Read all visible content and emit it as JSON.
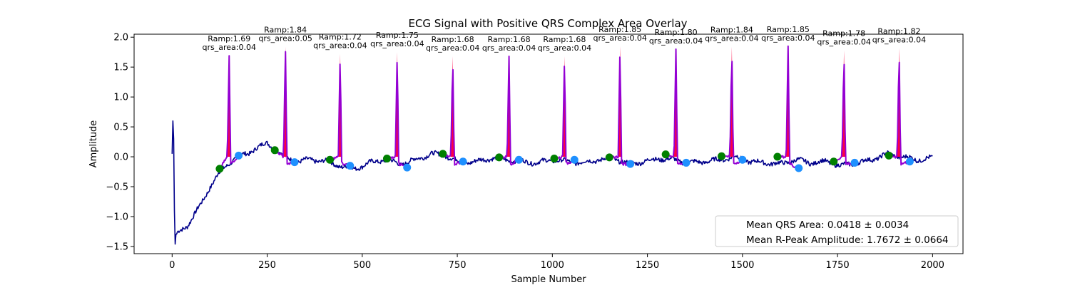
{
  "chart_data": {
    "type": "line",
    "title": "ECG Signal with Positive QRS Complex Area Overlay",
    "xlabel": "Sample Number",
    "ylabel": "Amplitude",
    "xlim": [
      -100,
      2080
    ],
    "ylim": [
      -1.62,
      2.05
    ],
    "xticks": [
      0,
      250,
      500,
      750,
      1000,
      1250,
      1500,
      1750,
      2000
    ],
    "yticks": [
      -1.5,
      -1.0,
      -0.5,
      0.0,
      0.5,
      1.0,
      1.5,
      2.0
    ],
    "xtick_labels": [
      "0",
      "250",
      "500",
      "750",
      "1000",
      "1250",
      "1500",
      "1750",
      "2000"
    ],
    "ytick_labels": [
      "−1.5",
      "−1.0",
      "−0.5",
      "0.0",
      "0.5",
      "1.0",
      "1.5",
      "2.0"
    ],
    "grid": false,
    "colors": {
      "signal": "#00008b",
      "qrs_segment": "#9400d3",
      "qrs_area": "#ff0040",
      "q_marker": "#008000",
      "s_marker": "#1e90ff"
    },
    "signal_keypoints": {
      "x": [
        0,
        2,
        4,
        6,
        8,
        10,
        20,
        40,
        60,
        80,
        100,
        120,
        140,
        160,
        180,
        200,
        220,
        250,
        275,
        300,
        330,
        360,
        400,
        440,
        480,
        520,
        560,
        600,
        640,
        680,
        720,
        760,
        800,
        840,
        880,
        920,
        960,
        1000,
        1040,
        1080,
        1120,
        1160,
        1200,
        1240,
        1280,
        1320,
        1360,
        1400,
        1440,
        1480,
        1520,
        1560,
        1600,
        1640,
        1680,
        1720,
        1760,
        1800,
        1840,
        1880,
        1920,
        1960,
        2000
      ],
      "y": [
        0.05,
        0.6,
        0.3,
        -0.9,
        -1.46,
        -1.3,
        -1.25,
        -1.15,
        -0.95,
        -0.75,
        -0.5,
        -0.3,
        -0.17,
        -0.05,
        0.02,
        0.05,
        0.15,
        0.22,
        0.12,
        -0.02,
        -0.08,
        -0.05,
        -0.07,
        -0.15,
        -0.2,
        -0.1,
        -0.05,
        -0.12,
        -0.05,
        0.05,
        0.02,
        -0.1,
        -0.08,
        -0.02,
        -0.05,
        -0.08,
        -0.1,
        -0.05,
        -0.08,
        -0.1,
        -0.05,
        -0.02,
        -0.12,
        -0.08,
        -0.03,
        -0.05,
        -0.1,
        -0.08,
        -0.05,
        0.0,
        -0.08,
        -0.1,
        -0.12,
        -0.05,
        -0.1,
        -0.08,
        -0.15,
        -0.1,
        -0.05,
        0.05,
        0.0,
        -0.05,
        -0.02
      ]
    },
    "beats": [
      {
        "q_x": 125,
        "q_y": -0.2,
        "r_x": 150,
        "r_y": 1.69,
        "s_x": 175,
        "s_y": 0.02,
        "label": "Ramp:1.69\nqrs_area:0.04"
      },
      {
        "q_x": 270,
        "q_y": 0.11,
        "r_x": 298,
        "r_y": 1.84,
        "s_x": 322,
        "s_y": -0.09,
        "label": "Ramp:1.84\nqrs_area:0.05"
      },
      {
        "q_x": 415,
        "q_y": -0.05,
        "r_x": 442,
        "r_y": 1.72,
        "s_x": 468,
        "s_y": -0.15,
        "label": "Ramp:1.72\nqrs_area:0.04"
      },
      {
        "q_x": 565,
        "q_y": -0.03,
        "r_x": 592,
        "r_y": 1.75,
        "s_x": 618,
        "s_y": -0.18,
        "label": "Ramp:1.75\nqrs_area:0.04"
      },
      {
        "q_x": 712,
        "q_y": 0.05,
        "r_x": 738,
        "r_y": 1.68,
        "s_x": 765,
        "s_y": -0.08,
        "label": "Ramp:1.68\nqrs_area:0.04"
      },
      {
        "q_x": 860,
        "q_y": -0.01,
        "r_x": 886,
        "r_y": 1.68,
        "s_x": 912,
        "s_y": -0.05,
        "label": "Ramp:1.68\nqrs_area:0.04"
      },
      {
        "q_x": 1005,
        "q_y": -0.03,
        "r_x": 1032,
        "r_y": 1.68,
        "s_x": 1058,
        "s_y": -0.05,
        "label": "Ramp:1.68\nqrs_area:0.04"
      },
      {
        "q_x": 1150,
        "q_y": -0.01,
        "r_x": 1178,
        "r_y": 1.85,
        "s_x": 1205,
        "s_y": -0.12,
        "label": "Ramp:1.85\nqrs_area:0.04"
      },
      {
        "q_x": 1298,
        "q_y": 0.04,
        "r_x": 1325,
        "r_y": 1.8,
        "s_x": 1352,
        "s_y": -0.1,
        "label": "Ramp:1.80\nqrs_area:0.04"
      },
      {
        "q_x": 1445,
        "q_y": 0.01,
        "r_x": 1472,
        "r_y": 1.84,
        "s_x": 1500,
        "s_y": -0.05,
        "label": "Ramp:1.84\nqrs_area:0.04"
      },
      {
        "q_x": 1592,
        "q_y": 0.0,
        "r_x": 1620,
        "r_y": 1.85,
        "s_x": 1648,
        "s_y": -0.19,
        "label": "Ramp:1.85\nqrs_area:0.04"
      },
      {
        "q_x": 1740,
        "q_y": -0.08,
        "r_x": 1767,
        "r_y": 1.78,
        "s_x": 1795,
        "s_y": -0.1,
        "label": "Ramp:1.78\nqrs_area:0.04"
      },
      {
        "q_x": 1885,
        "q_y": 0.02,
        "r_x": 1912,
        "r_y": 1.82,
        "s_x": 1940,
        "s_y": -0.08,
        "label": "Ramp:1.82\nqrs_area:0.04"
      }
    ],
    "legend": {
      "placement": "lower-right",
      "entries": [
        "Mean QRS Area: 0.0418 ± 0.0034",
        "Mean R-Peak Amplitude: 1.7672 ± 0.0664"
      ]
    }
  }
}
